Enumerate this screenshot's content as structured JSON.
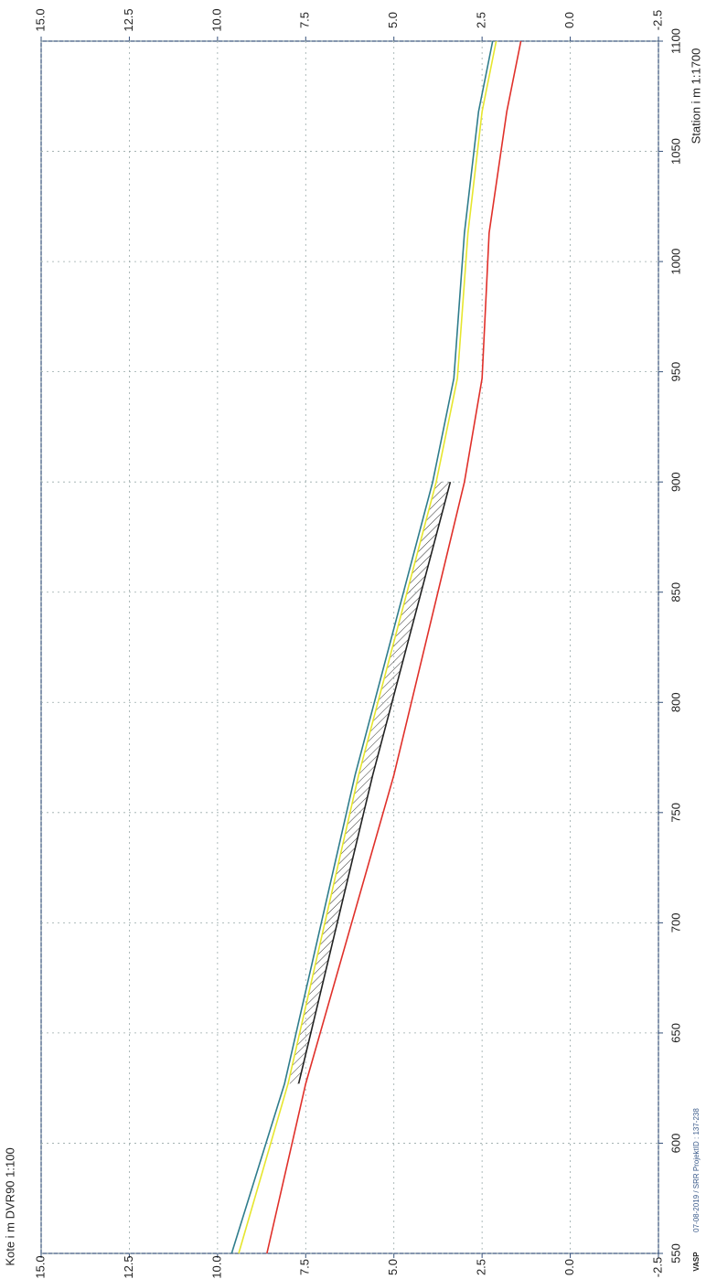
{
  "chart_data": {
    "type": "line",
    "x_label": "Station i m 1:1700",
    "y_label": "Kote i m DVR90 1:100",
    "footer": [
      "VASP",
      "07-08-2019 / SRR   ProjektID : 137-238"
    ],
    "x": [
      550,
      627,
      767,
      900,
      947,
      1013,
      1068,
      1100
    ],
    "series": [
      {
        "color": "#2f7d8c",
        "values": [
          9.6,
          8.1,
          6.1,
          3.9,
          3.3,
          3.0,
          2.6,
          2.2
        ]
      },
      {
        "color": "#e6e62e",
        "values": [
          9.4,
          8.0,
          6.0,
          3.8,
          3.2,
          2.9,
          2.5,
          2.1
        ]
      },
      {
        "color": "#222222",
        "values": [
          null,
          7.7,
          5.6,
          3.4,
          null,
          null,
          null,
          null
        ]
      },
      {
        "color": "#e0302a",
        "values": [
          8.6,
          7.5,
          5.0,
          3.0,
          2.5,
          2.3,
          1.8,
          1.4
        ]
      }
    ],
    "xlim": [
      550,
      1100
    ],
    "xticks": [
      550,
      600,
      650,
      700,
      750,
      800,
      850,
      900,
      950,
      1000,
      1050,
      1100
    ],
    "ylim": [
      -2.5,
      15
    ],
    "yticks": [
      {
        "value": 15,
        "label": "15.0"
      },
      12.5,
      {
        "value": 10,
        "label": "10.0"
      },
      7.5,
      {
        "value": 5,
        "label": "5.0"
      },
      2.5,
      {
        "value": 0,
        "label": "0.0"
      },
      -2.5
    ],
    "grid": true
  }
}
